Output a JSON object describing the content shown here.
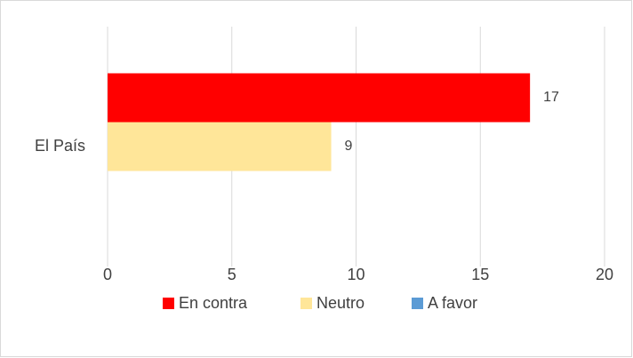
{
  "chart_data": {
    "type": "bar",
    "orientation": "horizontal",
    "categories": [
      "El País"
    ],
    "series": [
      {
        "name": "En contra",
        "color": "#ff0000",
        "values": [
          17
        ]
      },
      {
        "name": "Neutro",
        "color": "#ffe699",
        "values": [
          9
        ]
      },
      {
        "name": "A favor",
        "color": "#5b9bd5",
        "values": [
          null
        ]
      }
    ],
    "xlim": [
      0,
      20
    ],
    "xticks": [
      0,
      5,
      10,
      15,
      20
    ],
    "grid": true,
    "legend": "bottom"
  }
}
